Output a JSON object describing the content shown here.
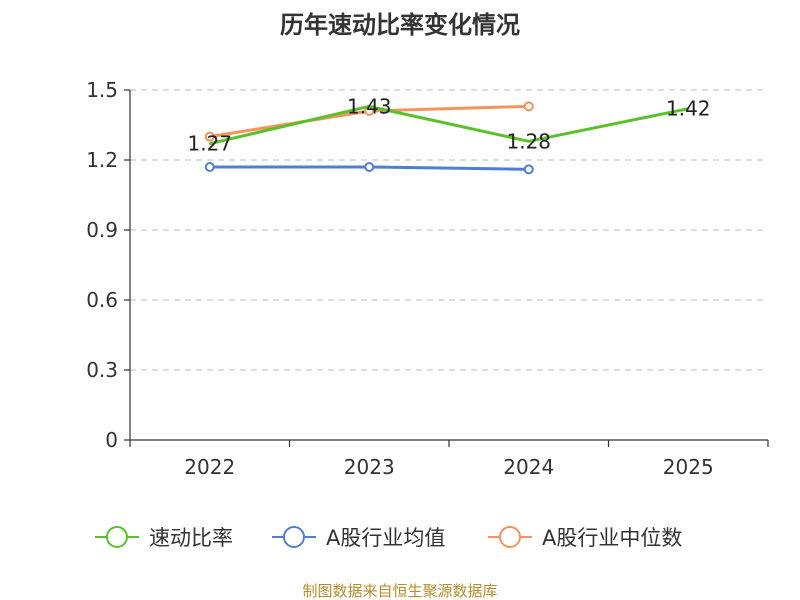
{
  "chart_data": {
    "type": "line",
    "title": "历年速动比率变化情况",
    "categories": [
      "2022",
      "2023",
      "2024",
      "2025"
    ],
    "y_ticks": [
      "0",
      "0.3",
      "0.6",
      "0.9",
      "1.2",
      "1.5"
    ],
    "ylim": [
      0,
      1.5
    ],
    "grid": true,
    "legend_position": "bottom",
    "series": [
      {
        "name": "速动比率",
        "color": "#5bc12b",
        "values": [
          1.27,
          1.43,
          1.28,
          1.42
        ],
        "labels": [
          "1.27",
          "1.43",
          "1.28",
          "1.42"
        ]
      },
      {
        "name": "A股行业均值",
        "color": "#4f7fd3",
        "values": [
          1.17,
          1.17,
          1.16,
          null
        ]
      },
      {
        "name": "A股行业中位数",
        "color": "#f4935c",
        "values": [
          1.3,
          1.41,
          1.43,
          null
        ]
      }
    ],
    "source": "制图数据来自恒生聚源数据库"
  }
}
